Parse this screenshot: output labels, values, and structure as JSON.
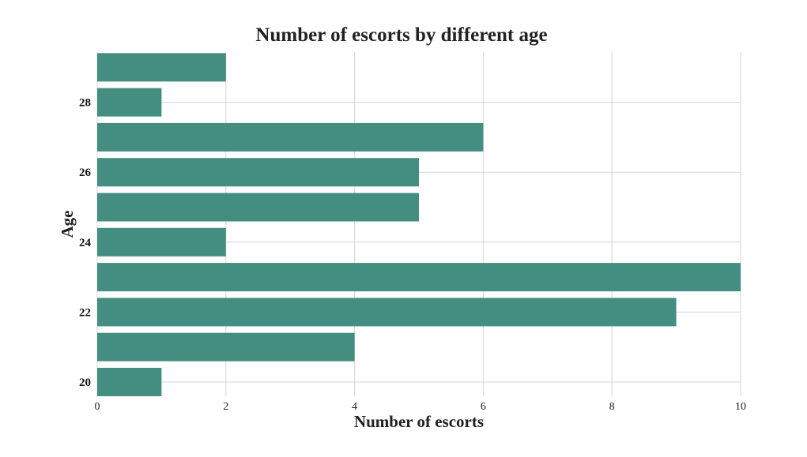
{
  "chart_data": {
    "type": "bar",
    "orientation": "horizontal",
    "title": "Number of escorts by different age",
    "xlabel": "Number of escorts",
    "ylabel": "Age",
    "categories": [
      20,
      21,
      22,
      23,
      24,
      25,
      26,
      27,
      28,
      29
    ],
    "values": [
      1,
      4,
      9,
      10,
      2,
      5,
      5,
      6,
      1,
      2
    ],
    "xlim": [
      0,
      10
    ],
    "xticks": [
      "0",
      "2",
      "4",
      "6",
      "8",
      "10"
    ],
    "yticks": [
      "20",
      "22",
      "24",
      "26",
      "28"
    ],
    "grid": true,
    "bar_color": "#438e80"
  }
}
